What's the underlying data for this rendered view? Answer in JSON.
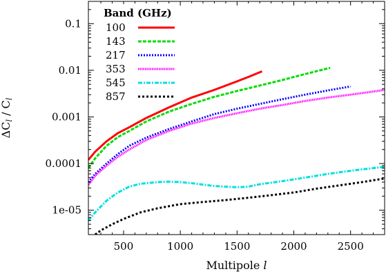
{
  "chart_data": {
    "type": "line",
    "xlabel": "Multipole",
    "xlabel_var": "l",
    "ylabel_main": "ΔC",
    "ylabel_sub1": "l",
    "ylabel_slash": " / C",
    "ylabel_sub2": "l",
    "xlim": [
      190,
      2800
    ],
    "ylim": [
      3e-06,
      0.3
    ],
    "yscale": "log",
    "x_ticks": [
      500,
      1000,
      1500,
      2000,
      2500
    ],
    "x_tick_labels": [
      "500",
      "1000",
      "1500",
      "2000",
      "2500"
    ],
    "y_ticks": [
      1e-05,
      0.0001,
      0.001,
      0.01,
      0.1
    ],
    "y_tick_labels": [
      "1e-05",
      "0.0001",
      "0.001",
      "0.01",
      "0.1"
    ],
    "legend_title": "Band (GHz)",
    "legend_position": "top-left",
    "grid": false,
    "series": [
      {
        "name": "100",
        "color": "#ff0000",
        "style": "solid",
        "x": [
          190,
          250,
          350,
          450,
          550,
          700,
          900,
          1100,
          1300,
          1500,
          1600,
          1720
        ],
        "y": [
          0.00012,
          0.00018,
          0.0003,
          0.00045,
          0.0006,
          0.00095,
          0.0016,
          0.0026,
          0.0038,
          0.0058,
          0.0072,
          0.0095
        ]
      },
      {
        "name": "143",
        "color": "#00dd00",
        "style": "dashed",
        "x": [
          190,
          250,
          350,
          450,
          550,
          700,
          900,
          1100,
          1300,
          1500,
          1700,
          1900,
          2100,
          2320
        ],
        "y": [
          8e-05,
          0.00013,
          0.00024,
          0.00037,
          0.0005,
          0.0008,
          0.0013,
          0.0019,
          0.0027,
          0.0036,
          0.0047,
          0.0062,
          0.0083,
          0.0113
        ]
      },
      {
        "name": "217",
        "color": "#0000ff",
        "style": "dotted",
        "x": [
          190,
          250,
          350,
          450,
          550,
          700,
          900,
          1100,
          1300,
          1500,
          1700,
          1900,
          2100,
          2300,
          2500
        ],
        "y": [
          4e-05,
          6e-05,
          0.0001,
          0.00016,
          0.00024,
          0.00036,
          0.00055,
          0.0008,
          0.00115,
          0.0015,
          0.0019,
          0.0024,
          0.003,
          0.0037,
          0.0045
        ]
      },
      {
        "name": "353",
        "color": "#ff00ff",
        "style": "dense-dotted",
        "x": [
          190,
          250,
          350,
          450,
          550,
          700,
          900,
          1100,
          1300,
          1500,
          1700,
          1900,
          2100,
          2300,
          2500,
          2700,
          2800
        ],
        "y": [
          3.5e-05,
          5.5e-05,
          9e-05,
          0.00014,
          0.0002,
          0.00032,
          0.0005,
          0.00072,
          0.00095,
          0.0012,
          0.0015,
          0.0018,
          0.0022,
          0.0026,
          0.003,
          0.0035,
          0.0038
        ]
      },
      {
        "name": "545",
        "color": "#00e0e0",
        "style": "dash-dot",
        "x": [
          190,
          250,
          350,
          450,
          550,
          650,
          800,
          900,
          1000,
          1100,
          1300,
          1500,
          1600,
          1700,
          1900,
          2100,
          2300,
          2500,
          2700,
          2800
        ],
        "y": [
          6e-06,
          9e-06,
          1.6e-05,
          2.4e-05,
          3.2e-05,
          3.7e-05,
          4e-05,
          4.1e-05,
          4e-05,
          3.8e-05,
          3.3e-05,
          3.1e-05,
          3.2e-05,
          3.6e-05,
          4.2e-05,
          5e-05,
          6e-05,
          7e-05,
          8e-05,
          8.5e-05
        ]
      },
      {
        "name": "857",
        "color": "#000000",
        "style": "sparse-dotted",
        "x": [
          250,
          300,
          400,
          500,
          650,
          800,
          1000,
          1200,
          1400,
          1600,
          1800,
          2000,
          2200,
          2400,
          2600,
          2800
        ],
        "y": [
          3e-06,
          3.7e-06,
          5e-06,
          6.5e-06,
          9e-06,
          1.1e-05,
          1.35e-05,
          1.5e-05,
          1.65e-05,
          1.85e-05,
          2.1e-05,
          2.4e-05,
          2.9e-05,
          3.4e-05,
          4e-05,
          4.8e-05
        ]
      }
    ]
  }
}
